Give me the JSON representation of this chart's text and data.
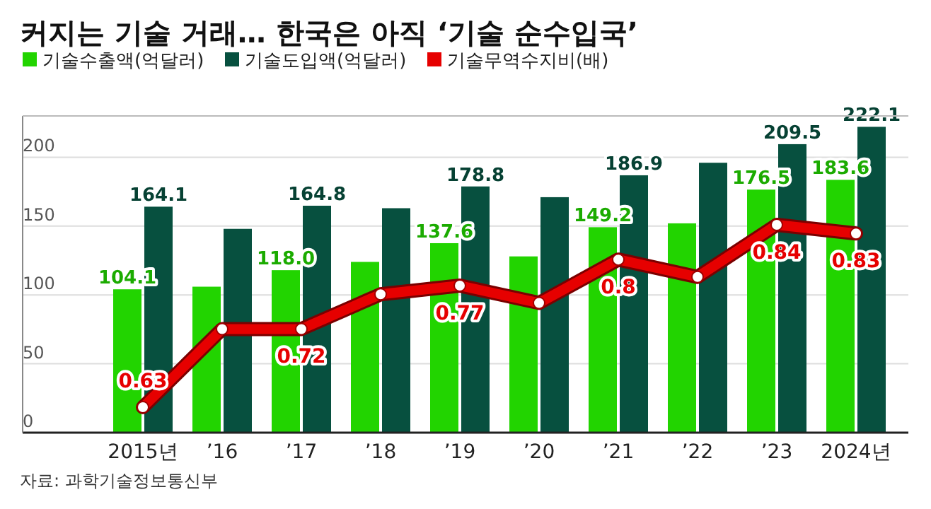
{
  "chart_data": {
    "type": "bar",
    "title": "커지는 기술 거래… 한국은 아직 ‘기술 순수입국’",
    "categories": [
      "2015년",
      "’16",
      "’17",
      "’18",
      "’19",
      "’20",
      "’21",
      "’22",
      "’23",
      "2024년"
    ],
    "series": [
      {
        "name": "기술수출액(억달러)",
        "color": "#22d400",
        "values": [
          104.1,
          106,
          118.0,
          124,
          137.6,
          128,
          149.2,
          152,
          176.5,
          183.6
        ],
        "value_labels": [
          "104.1",
          null,
          "118.0",
          null,
          "137.6",
          null,
          "149.2",
          null,
          "176.5",
          "183.6"
        ]
      },
      {
        "name": "기술도입액(억달러)",
        "color": "#07503f",
        "values": [
          164.1,
          148,
          164.8,
          163,
          178.8,
          171,
          186.9,
          196,
          209.5,
          222.1
        ],
        "value_labels": [
          "164.1",
          null,
          "164.8",
          null,
          "178.8",
          null,
          "186.9",
          null,
          "209.5",
          "222.1"
        ]
      },
      {
        "name": "기술무역수지비(배)",
        "type": "line",
        "axis": "y2",
        "color": "#e60000",
        "marker": "circle",
        "values": [
          0.63,
          0.72,
          0.72,
          0.76,
          0.77,
          0.75,
          0.8,
          0.78,
          0.84,
          0.83
        ],
        "value_labels": [
          "0.63",
          null,
          "0.72",
          null,
          "0.77",
          null,
          "0.8",
          null,
          "0.84",
          "0.83"
        ]
      }
    ],
    "ylim": [
      0,
      230
    ],
    "yticks": [
      0,
      50,
      100,
      150,
      200
    ],
    "grid": "y",
    "legend": "top left",
    "annotations": [
      "자료: 과학기술정보통신부"
    ]
  }
}
